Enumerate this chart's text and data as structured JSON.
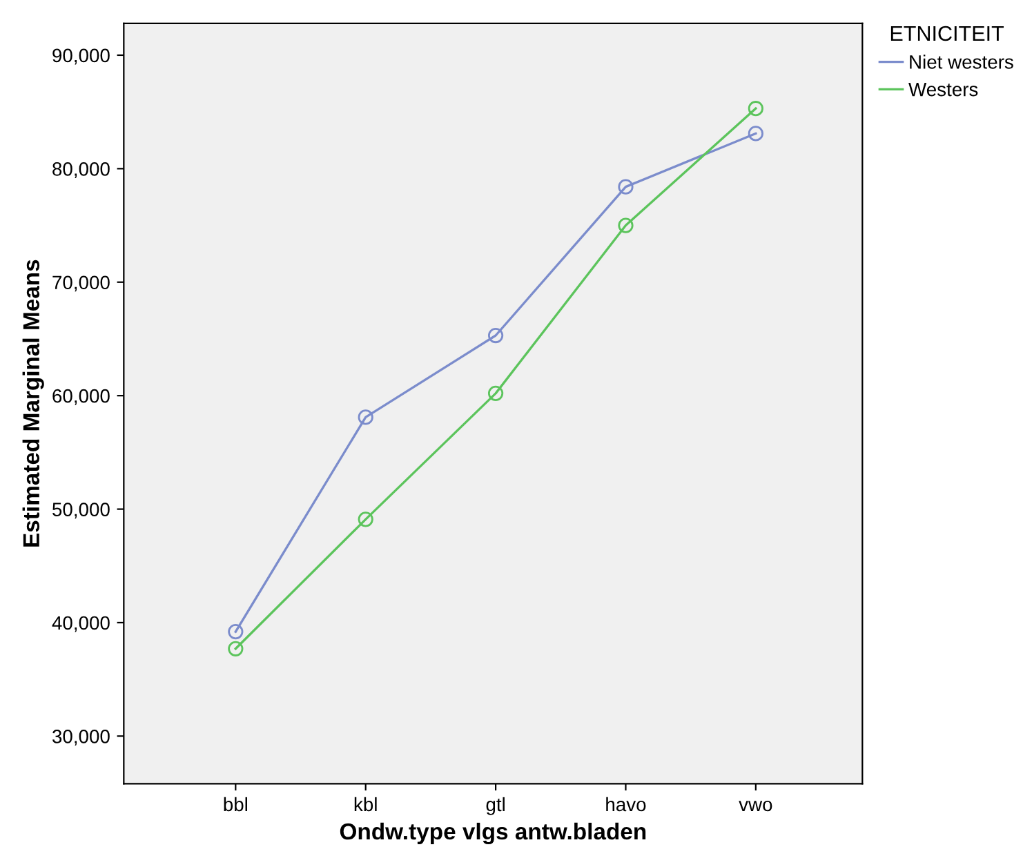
{
  "chart_data": {
    "type": "line",
    "xlabel": "Ondw.type vlgs antw.bladen",
    "ylabel": "Estimated Marginal Means",
    "legend_title": "ETNICITEIT",
    "categories": [
      "bbl",
      "kbl",
      "gtl",
      "havo",
      "vwo"
    ],
    "series": [
      {
        "name": "Niet westers",
        "color": "#7b8ccc",
        "values": [
          39200,
          58100,
          65300,
          78400,
          83100
        ]
      },
      {
        "name": "Westers",
        "color": "#5cc45c",
        "values": [
          37700,
          49100,
          60200,
          75000,
          85300
        ]
      }
    ],
    "ylim": [
      25800,
      92800
    ],
    "yticks": [
      {
        "value": 30000,
        "label": "30,000"
      },
      {
        "value": 40000,
        "label": "40,000"
      },
      {
        "value": 50000,
        "label": "50,000"
      },
      {
        "value": 60000,
        "label": "60,000"
      },
      {
        "value": 70000,
        "label": "70,000"
      },
      {
        "value": 80000,
        "label": "80,000"
      },
      {
        "value": 90000,
        "label": "90,000"
      }
    ],
    "marker": "circle",
    "line_style": "solid",
    "legend": "top right",
    "grid": false
  }
}
